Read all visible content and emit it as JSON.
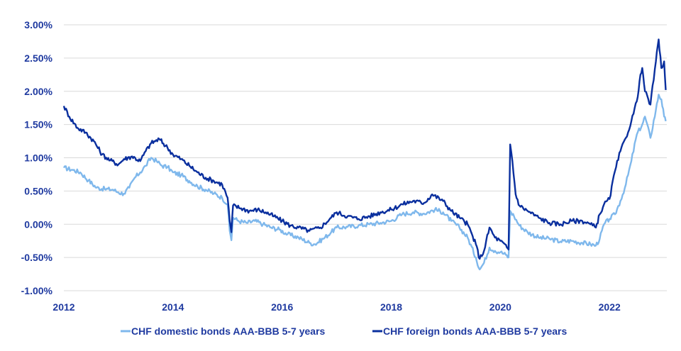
{
  "chart_data": {
    "type": "line",
    "title": "",
    "xlabel": "",
    "ylabel": "",
    "xlim": [
      2012,
      2023.05
    ],
    "ylim": [
      -1.0,
      3.0
    ],
    "grid": true,
    "legend_position": "bottom",
    "x_ticks": [
      2012,
      2014,
      2016,
      2018,
      2020,
      2022
    ],
    "x_tick_labels": [
      "2012",
      "2014",
      "2016",
      "2018",
      "2020",
      "2022"
    ],
    "y_ticks": [
      -1.0,
      -0.5,
      0.0,
      0.5,
      1.0,
      1.5,
      2.0,
      2.5,
      3.0
    ],
    "y_tick_labels": [
      "-1.00%",
      "-0.50%",
      "0.00%",
      "0.50%",
      "1.00%",
      "1.50%",
      "2.00%",
      "2.50%",
      "3.00%"
    ],
    "colors": {
      "axis_text": "#1f3aa0",
      "grid": "#d9d9d9"
    },
    "series": [
      {
        "name": "CHF domestic bonds AAA-BBB 5-7 years",
        "color": "#7fb8ec",
        "points": [
          [
            2012.0,
            0.85
          ],
          [
            2012.15,
            0.82
          ],
          [
            2012.3,
            0.78
          ],
          [
            2012.45,
            0.66
          ],
          [
            2012.6,
            0.55
          ],
          [
            2012.75,
            0.53
          ],
          [
            2012.9,
            0.52
          ],
          [
            2013.0,
            0.48
          ],
          [
            2013.1,
            0.46
          ],
          [
            2013.2,
            0.55
          ],
          [
            2013.3,
            0.7
          ],
          [
            2013.4,
            0.78
          ],
          [
            2013.5,
            0.88
          ],
          [
            2013.6,
            1.0
          ],
          [
            2013.7,
            0.95
          ],
          [
            2013.8,
            0.88
          ],
          [
            2013.9,
            0.86
          ],
          [
            2014.0,
            0.78
          ],
          [
            2014.15,
            0.74
          ],
          [
            2014.3,
            0.65
          ],
          [
            2014.45,
            0.57
          ],
          [
            2014.6,
            0.52
          ],
          [
            2014.75,
            0.46
          ],
          [
            2014.9,
            0.4
          ],
          [
            2015.0,
            0.3
          ],
          [
            2015.04,
            -0.1
          ],
          [
            2015.07,
            -0.24
          ],
          [
            2015.1,
            0.1
          ],
          [
            2015.2,
            0.05
          ],
          [
            2015.35,
            0.02
          ],
          [
            2015.5,
            0.05
          ],
          [
            2015.65,
            0.0
          ],
          [
            2015.8,
            -0.05
          ],
          [
            2015.95,
            -0.08
          ],
          [
            2016.1,
            -0.15
          ],
          [
            2016.3,
            -0.2
          ],
          [
            2016.5,
            -0.28
          ],
          [
            2016.6,
            -0.3
          ],
          [
            2016.75,
            -0.22
          ],
          [
            2016.9,
            -0.12
          ],
          [
            2017.0,
            -0.05
          ],
          [
            2017.2,
            -0.04
          ],
          [
            2017.4,
            -0.02
          ],
          [
            2017.6,
            0.0
          ],
          [
            2017.8,
            0.02
          ],
          [
            2018.0,
            0.05
          ],
          [
            2018.2,
            0.15
          ],
          [
            2018.4,
            0.18
          ],
          [
            2018.6,
            0.16
          ],
          [
            2018.8,
            0.22
          ],
          [
            2018.95,
            0.18
          ],
          [
            2019.1,
            0.05
          ],
          [
            2019.25,
            -0.05
          ],
          [
            2019.4,
            -0.2
          ],
          [
            2019.55,
            -0.5
          ],
          [
            2019.62,
            -0.68
          ],
          [
            2019.7,
            -0.58
          ],
          [
            2019.8,
            -0.35
          ],
          [
            2019.9,
            -0.4
          ],
          [
            2020.0,
            -0.42
          ],
          [
            2020.1,
            -0.46
          ],
          [
            2020.15,
            -0.5
          ],
          [
            2020.18,
            0.2
          ],
          [
            2020.25,
            0.12
          ],
          [
            2020.35,
            -0.02
          ],
          [
            2020.5,
            -0.12
          ],
          [
            2020.7,
            -0.2
          ],
          [
            2020.9,
            -0.22
          ],
          [
            2021.1,
            -0.26
          ],
          [
            2021.3,
            -0.25
          ],
          [
            2021.5,
            -0.28
          ],
          [
            2021.65,
            -0.3
          ],
          [
            2021.75,
            -0.32
          ],
          [
            2021.82,
            -0.22
          ],
          [
            2021.9,
            0.0
          ],
          [
            2022.0,
            0.08
          ],
          [
            2022.1,
            0.15
          ],
          [
            2022.2,
            0.35
          ],
          [
            2022.3,
            0.6
          ],
          [
            2022.4,
            0.95
          ],
          [
            2022.5,
            1.35
          ],
          [
            2022.6,
            1.5
          ],
          [
            2022.65,
            1.62
          ],
          [
            2022.75,
            1.3
          ],
          [
            2022.85,
            1.72
          ],
          [
            2022.9,
            1.95
          ],
          [
            2022.95,
            1.88
          ],
          [
            2023.0,
            1.62
          ],
          [
            2023.03,
            1.55
          ]
        ]
      },
      {
        "name": "CHF foreign bonds AAA-BBB 5-7 years",
        "color": "#0a2f9e",
        "points": [
          [
            2012.0,
            1.78
          ],
          [
            2012.1,
            1.62
          ],
          [
            2012.25,
            1.45
          ],
          [
            2012.4,
            1.38
          ],
          [
            2012.55,
            1.25
          ],
          [
            2012.7,
            1.05
          ],
          [
            2012.85,
            0.96
          ],
          [
            2013.0,
            0.9
          ],
          [
            2013.1,
            0.98
          ],
          [
            2013.25,
            1.02
          ],
          [
            2013.4,
            0.95
          ],
          [
            2013.5,
            1.1
          ],
          [
            2013.6,
            1.22
          ],
          [
            2013.75,
            1.28
          ],
          [
            2013.9,
            1.15
          ],
          [
            2014.0,
            1.05
          ],
          [
            2014.15,
            0.98
          ],
          [
            2014.3,
            0.88
          ],
          [
            2014.45,
            0.78
          ],
          [
            2014.6,
            0.7
          ],
          [
            2014.75,
            0.65
          ],
          [
            2014.9,
            0.6
          ],
          [
            2015.0,
            0.4
          ],
          [
            2015.04,
            0.05
          ],
          [
            2015.07,
            -0.12
          ],
          [
            2015.1,
            0.28
          ],
          [
            2015.25,
            0.24
          ],
          [
            2015.4,
            0.2
          ],
          [
            2015.55,
            0.22
          ],
          [
            2015.7,
            0.18
          ],
          [
            2015.85,
            0.12
          ],
          [
            2016.0,
            0.05
          ],
          [
            2016.15,
            -0.02
          ],
          [
            2016.3,
            -0.05
          ],
          [
            2016.5,
            -0.1
          ],
          [
            2016.7,
            -0.05
          ],
          [
            2016.9,
            0.1
          ],
          [
            2017.0,
            0.18
          ],
          [
            2017.2,
            0.12
          ],
          [
            2017.4,
            0.08
          ],
          [
            2017.6,
            0.12
          ],
          [
            2017.8,
            0.18
          ],
          [
            2018.0,
            0.22
          ],
          [
            2018.2,
            0.3
          ],
          [
            2018.4,
            0.35
          ],
          [
            2018.6,
            0.32
          ],
          [
            2018.75,
            0.45
          ],
          [
            2018.95,
            0.35
          ],
          [
            2019.1,
            0.2
          ],
          [
            2019.25,
            0.1
          ],
          [
            2019.4,
            0.0
          ],
          [
            2019.55,
            -0.3
          ],
          [
            2019.62,
            -0.52
          ],
          [
            2019.7,
            -0.4
          ],
          [
            2019.8,
            -0.05
          ],
          [
            2019.9,
            -0.2
          ],
          [
            2020.0,
            -0.25
          ],
          [
            2020.12,
            -0.35
          ],
          [
            2020.15,
            -0.38
          ],
          [
            2020.18,
            1.2
          ],
          [
            2020.22,
            0.95
          ],
          [
            2020.28,
            0.45
          ],
          [
            2020.35,
            0.28
          ],
          [
            2020.5,
            0.2
          ],
          [
            2020.7,
            0.1
          ],
          [
            2020.9,
            0.02
          ],
          [
            2021.1,
            0.0
          ],
          [
            2021.3,
            0.05
          ],
          [
            2021.5,
            0.05
          ],
          [
            2021.65,
            0.0
          ],
          [
            2021.75,
            -0.05
          ],
          [
            2021.82,
            0.15
          ],
          [
            2021.9,
            0.3
          ],
          [
            2022.0,
            0.38
          ],
          [
            2022.1,
            0.8
          ],
          [
            2022.2,
            1.1
          ],
          [
            2022.3,
            1.3
          ],
          [
            2022.4,
            1.55
          ],
          [
            2022.5,
            1.85
          ],
          [
            2022.55,
            2.15
          ],
          [
            2022.6,
            2.35
          ],
          [
            2022.65,
            2.0
          ],
          [
            2022.75,
            1.8
          ],
          [
            2022.85,
            2.45
          ],
          [
            2022.9,
            2.78
          ],
          [
            2022.95,
            2.35
          ],
          [
            2023.0,
            2.45
          ],
          [
            2023.03,
            2.02
          ]
        ]
      }
    ]
  }
}
